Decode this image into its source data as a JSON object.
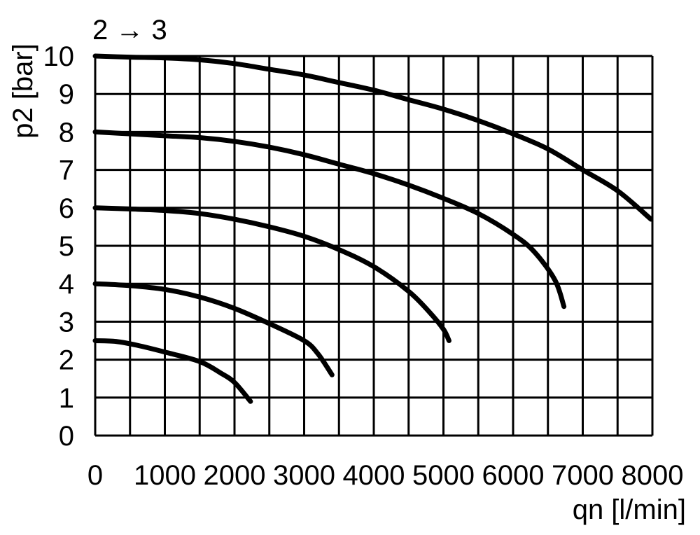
{
  "chart_data": {
    "type": "line",
    "title": "2 → 3",
    "xlabel": "qn [l/min]",
    "ylabel": "p2 [bar]",
    "xlim": [
      0,
      8000
    ],
    "ylim": [
      0,
      10
    ],
    "grid": true,
    "x_ticks": [
      "0",
      "1000",
      "2000",
      "3000",
      "4000",
      "5000",
      "6000",
      "7000",
      "8000"
    ],
    "y_ticks": [
      "0",
      "1",
      "2",
      "3",
      "4",
      "5",
      "6",
      "7",
      "8",
      "9",
      "10"
    ],
    "series": [
      {
        "points": [
          [
            0,
            10
          ],
          [
            500,
            9.97
          ],
          [
            1000,
            9.95
          ],
          [
            1500,
            9.9
          ],
          [
            2000,
            9.8
          ],
          [
            2500,
            9.65
          ],
          [
            3000,
            9.5
          ],
          [
            3500,
            9.3
          ],
          [
            4000,
            9.1
          ],
          [
            4500,
            8.85
          ],
          [
            5000,
            8.6
          ],
          [
            5500,
            8.3
          ],
          [
            6000,
            7.95
          ],
          [
            6500,
            7.55
          ],
          [
            7000,
            7.0
          ],
          [
            7500,
            6.45
          ],
          [
            7980,
            5.7
          ]
        ]
      },
      {
        "points": [
          [
            0,
            8
          ],
          [
            500,
            7.95
          ],
          [
            1000,
            7.9
          ],
          [
            1500,
            7.85
          ],
          [
            2000,
            7.75
          ],
          [
            2500,
            7.6
          ],
          [
            3000,
            7.4
          ],
          [
            3500,
            7.15
          ],
          [
            4000,
            6.9
          ],
          [
            4500,
            6.6
          ],
          [
            5000,
            6.25
          ],
          [
            5500,
            5.85
          ],
          [
            6000,
            5.3
          ],
          [
            6300,
            4.85
          ],
          [
            6600,
            4.1
          ],
          [
            6730,
            3.4
          ]
        ]
      },
      {
        "points": [
          [
            0,
            6
          ],
          [
            500,
            5.97
          ],
          [
            1000,
            5.93
          ],
          [
            1500,
            5.85
          ],
          [
            2000,
            5.7
          ],
          [
            2500,
            5.5
          ],
          [
            3000,
            5.25
          ],
          [
            3500,
            4.9
          ],
          [
            4000,
            4.45
          ],
          [
            4500,
            3.8
          ],
          [
            4800,
            3.25
          ],
          [
            5000,
            2.8
          ],
          [
            5080,
            2.5
          ]
        ]
      },
      {
        "points": [
          [
            0,
            4
          ],
          [
            500,
            3.95
          ],
          [
            1000,
            3.85
          ],
          [
            1500,
            3.65
          ],
          [
            2000,
            3.35
          ],
          [
            2500,
            2.95
          ],
          [
            3000,
            2.5
          ],
          [
            3200,
            2.15
          ],
          [
            3400,
            1.6
          ]
        ]
      },
      {
        "points": [
          [
            0,
            2.5
          ],
          [
            300,
            2.48
          ],
          [
            600,
            2.38
          ],
          [
            1000,
            2.2
          ],
          [
            1500,
            1.95
          ],
          [
            1800,
            1.65
          ],
          [
            2000,
            1.4
          ],
          [
            2230,
            0.9
          ]
        ]
      }
    ]
  }
}
